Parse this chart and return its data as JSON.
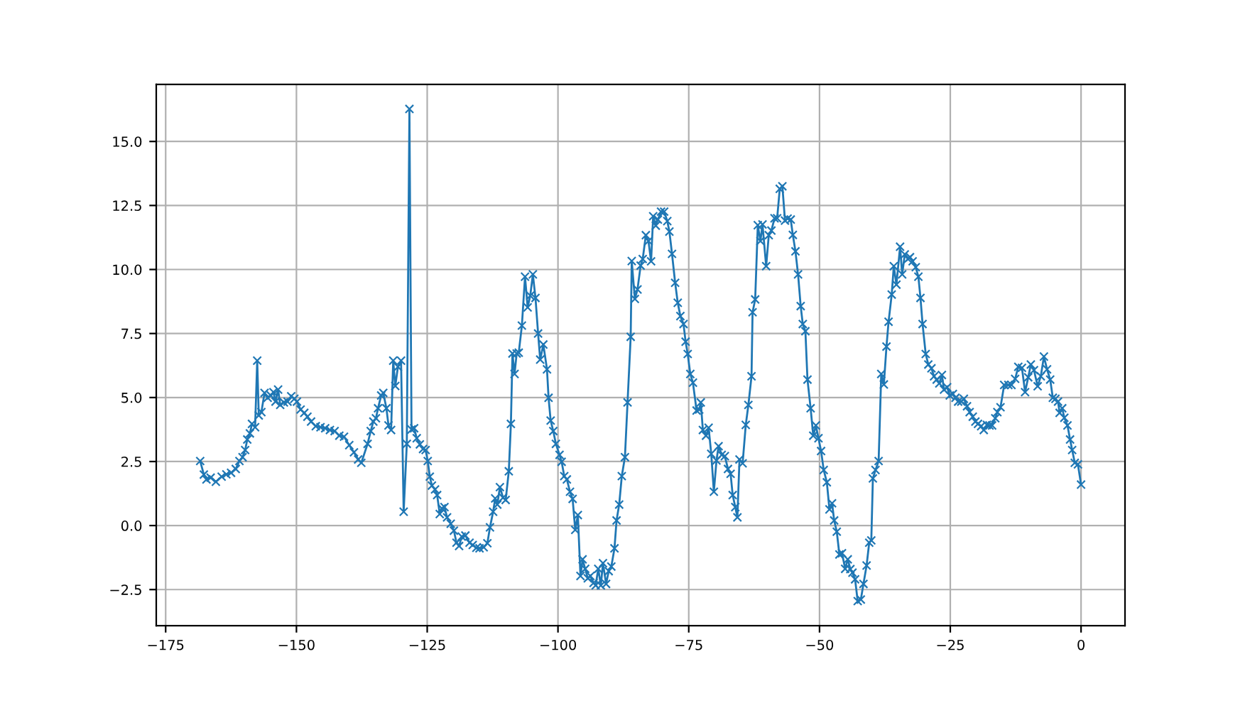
{
  "chart_data": {
    "type": "line",
    "x": [
      -168.4,
      -167.7,
      -167.2,
      -166.4,
      -165.4,
      -164.3,
      -163.4,
      -162.5,
      -161.6,
      -160.9,
      -160.3,
      -159.8,
      -159.4,
      -158.9,
      -158.5,
      -157.9,
      -157.5,
      -157.2,
      -156.7,
      -156.1,
      -155.5,
      -154.9,
      -154.4,
      -154.0,
      -153.5,
      -153.1,
      -152.4,
      -151.7,
      -151.0,
      -150.4,
      -149.9,
      -149.2,
      -148.5,
      -147.9,
      -147.2,
      -146.3,
      -145.4,
      -144.5,
      -143.6,
      -142.7,
      -141.8,
      -140.9,
      -139.9,
      -139.0,
      -138.2,
      -137.6,
      -136.4,
      -135.8,
      -135.3,
      -134.8,
      -134.4,
      -133.8,
      -133.4,
      -132.8,
      -132.4,
      -131.9,
      -131.5,
      -131.1,
      -130.6,
      -130.0,
      -129.5,
      -128.9,
      -128.4,
      -128.0,
      -127.5,
      -127.0,
      -126.4,
      -125.8,
      -125.3,
      -124.9,
      -124.5,
      -124.1,
      -123.5,
      -123.1,
      -122.6,
      -122.2,
      -121.7,
      -121.2,
      -120.5,
      -119.9,
      -119.4,
      -118.9,
      -118.4,
      -117.7,
      -116.9,
      -116.3,
      -115.6,
      -115.0,
      -114.2,
      -113.5,
      -113.0,
      -112.4,
      -112.0,
      -111.6,
      -111.1,
      -110.5,
      -110.0,
      -109.4,
      -109.0,
      -108.7,
      -108.3,
      -107.9,
      -107.5,
      -106.9,
      -106.3,
      -105.8,
      -105.3,
      -104.8,
      -104.3,
      -103.8,
      -103.4,
      -102.8,
      -102.1,
      -101.8,
      -101.4,
      -100.9,
      -100.4,
      -99.7,
      -99.3,
      -98.8,
      -98.3,
      -97.7,
      -97.2,
      -96.7,
      -96.2,
      -95.7,
      -95.3,
      -94.8,
      -94.3,
      -93.8,
      -93.2,
      -92.8,
      -92.3,
      -91.8,
      -91.4,
      -90.8,
      -90.3,
      -89.8,
      -89.2,
      -88.8,
      -88.3,
      -87.8,
      -87.2,
      -86.7,
      -86.1,
      -85.9,
      -85.3,
      -84.8,
      -84.2,
      -83.8,
      -83.2,
      -82.7,
      -82.2,
      -81.8,
      -81.3,
      -80.9,
      -80.3,
      -79.7,
      -79.1,
      -78.7,
      -78.2,
      -77.6,
      -77.1,
      -76.6,
      -76.0,
      -75.6,
      -75.2,
      -74.7,
      -74.2,
      -73.5,
      -73.0,
      -72.7,
      -72.3,
      -71.7,
      -71.2,
      -70.7,
      -70.2,
      -69.7,
      -69.3,
      -68.7,
      -68.1,
      -67.5,
      -67.0,
      -66.6,
      -66.1,
      -65.7,
      -65.3,
      -64.7,
      -64.1,
      -63.6,
      -63.0,
      -62.8,
      -62.3,
      -61.8,
      -61.3,
      -60.9,
      -60.2,
      -59.7,
      -59.2,
      -58.6,
      -58.1,
      -57.6,
      -57.1,
      -56.6,
      -56.1,
      -55.5,
      -55.1,
      -54.6,
      -54.1,
      -53.6,
      -53.2,
      -52.7,
      -52.3,
      -51.7,
      -51.2,
      -50.7,
      -50.2,
      -49.7,
      -49.2,
      -48.6,
      -48.1,
      -47.6,
      -47.2,
      -46.7,
      -46.2,
      -45.7,
      -45.1,
      -44.6,
      -44.1,
      -43.7,
      -43.2,
      -42.7,
      -42.1,
      -41.6,
      -41.0,
      -40.5,
      -40.1,
      -39.8,
      -39.3,
      -38.7,
      -38.2,
      -37.7,
      -37.2,
      -36.8,
      -36.2,
      -35.8,
      -35.3,
      -34.6,
      -34.2,
      -33.7,
      -33.1,
      -32.7,
      -32.2,
      -31.6,
      -31.1,
      -30.7,
      -30.3,
      -29.7,
      -29.2,
      -28.6,
      -28.1,
      -27.6,
      -27.1,
      -26.6,
      -26.2,
      -25.6,
      -25.1,
      -24.5,
      -24.0,
      -23.5,
      -22.9,
      -22.4,
      -21.8,
      -21.3,
      -20.7,
      -20.2,
      -19.7,
      -19.1,
      -18.6,
      -18.0,
      -17.5,
      -17.0,
      -16.4,
      -16.0,
      -15.4,
      -14.7,
      -13.9,
      -13.3,
      -12.6,
      -12.0,
      -11.3,
      -10.7,
      -10.1,
      -9.6,
      -9.0,
      -8.3,
      -7.7,
      -7.1,
      -6.5,
      -5.9,
      -5.4,
      -4.9,
      -4.4,
      -4.1,
      -3.6,
      -3.2,
      -2.6,
      -2.1,
      -1.7,
      -1.2,
      -0.6,
      0.0
    ],
    "series": [
      {
        "color": "#1f77b4",
        "values": [
          2.52,
          1.99,
          1.8,
          1.87,
          1.71,
          1.91,
          2.0,
          2.06,
          2.21,
          2.52,
          2.67,
          2.95,
          3.36,
          3.6,
          3.97,
          3.84,
          6.44,
          4.3,
          4.43,
          5.18,
          4.99,
          5.08,
          5.21,
          4.84,
          5.31,
          4.71,
          4.81,
          4.84,
          5.05,
          4.95,
          4.84,
          4.53,
          4.4,
          4.25,
          4.06,
          3.88,
          3.84,
          3.8,
          3.73,
          3.69,
          3.51,
          3.47,
          3.14,
          2.86,
          2.58,
          2.45,
          3.19,
          3.69,
          4.06,
          4.19,
          4.58,
          5.08,
          5.18,
          4.58,
          3.91,
          3.73,
          6.44,
          5.45,
          6.2,
          6.44,
          0.54,
          3.19,
          16.27,
          3.75,
          3.8,
          3.41,
          3.17,
          2.99,
          2.95,
          2.52,
          1.91,
          1.56,
          1.41,
          1.19,
          0.45,
          0.67,
          0.72,
          0.32,
          0.07,
          -0.2,
          -0.67,
          -0.8,
          -0.43,
          -0.39,
          -0.67,
          -0.76,
          -0.87,
          -0.89,
          -0.85,
          -0.69,
          -0.07,
          0.54,
          1.06,
          0.82,
          1.5,
          1.09,
          1.0,
          2.12,
          3.97,
          6.72,
          5.92,
          6.72,
          6.75,
          7.81,
          9.72,
          8.52,
          8.98,
          9.81,
          8.89,
          7.5,
          6.48,
          7.07,
          6.1,
          4.99,
          4.1,
          3.69,
          3.19,
          2.76,
          2.49,
          1.93,
          1.8,
          1.32,
          1.04,
          -0.17,
          0.41,
          -1.97,
          -1.32,
          -1.69,
          -2.06,
          -1.97,
          -2.24,
          -2.34,
          -1.69,
          -2.34,
          -1.47,
          -2.28,
          -1.78,
          -1.6,
          -0.89,
          0.2,
          0.82,
          1.93,
          2.67,
          4.81,
          7.37,
          10.33,
          8.85,
          9.22,
          10.15,
          10.41,
          11.34,
          11.11,
          10.32,
          12.08,
          11.71,
          11.95,
          12.26,
          12.26,
          11.89,
          11.48,
          10.61,
          9.48,
          8.7,
          8.18,
          7.87,
          7.18,
          6.7,
          5.92,
          5.58,
          4.49,
          4.53,
          4.81,
          3.73,
          3.51,
          3.82,
          2.8,
          1.32,
          2.54,
          3.1,
          2.76,
          2.71,
          2.21,
          2.02,
          1.19,
          0.72,
          0.32,
          2.58,
          2.43,
          3.93,
          4.71,
          5.83,
          8.33,
          8.83,
          11.73,
          11.11,
          11.76,
          10.13,
          11.34,
          11.52,
          12.0,
          12.0,
          13.15,
          13.25,
          11.91,
          11.99,
          11.95,
          11.35,
          10.71,
          9.81,
          8.57,
          7.87,
          7.59,
          5.7,
          4.58,
          3.51,
          3.91,
          3.41,
          2.91,
          2.17,
          1.69,
          0.63,
          0.87,
          0.2,
          -0.24,
          -1.13,
          -1.08,
          -1.69,
          -1.32,
          -1.7,
          -1.84,
          -2.1,
          -2.95,
          -2.89,
          -2.28,
          -1.56,
          -0.67,
          -0.58,
          1.84,
          2.17,
          2.52,
          5.92,
          5.51,
          6.99,
          7.96,
          9.02,
          10.13,
          9.41,
          10.89,
          9.81,
          10.59,
          10.41,
          10.48,
          10.32,
          10.09,
          9.72,
          8.89,
          7.87,
          6.7,
          6.29,
          6.14,
          5.83,
          5.7,
          5.55,
          5.88,
          5.31,
          5.4,
          5.08,
          5.14,
          4.99,
          4.84,
          4.84,
          4.95,
          4.66,
          4.43,
          4.25,
          4.06,
          3.97,
          3.88,
          3.73,
          3.93,
          3.91,
          3.91,
          4.19,
          4.43,
          4.62,
          5.49,
          5.49,
          5.49,
          5.73,
          6.2,
          6.16,
          5.21,
          5.79,
          6.29,
          6.07,
          5.44,
          5.83,
          6.6,
          6.1,
          5.7,
          4.99,
          4.95,
          4.84,
          4.4,
          4.58,
          4.21,
          3.91,
          3.36,
          2.95,
          2.45,
          2.39,
          1.6
        ]
      }
    ],
    "xlim": [
      -176.8,
      8.4
    ],
    "ylim": [
      -3.91,
      17.23
    ],
    "xticks": [
      {
        "value": -175,
        "label": "−175"
      },
      {
        "value": -150,
        "label": "−150"
      },
      {
        "value": -125,
        "label": "−125"
      },
      {
        "value": -100,
        "label": "−100"
      },
      {
        "value": -75,
        "label": "−75"
      },
      {
        "value": -50,
        "label": "−50"
      },
      {
        "value": -25,
        "label": "−25"
      },
      0
    ],
    "yticks": [
      {
        "value": -2.5,
        "label": "−2.5"
      },
      {
        "value": 0,
        "label": "0.0"
      },
      {
        "value": 2.5,
        "label": "2.5"
      },
      {
        "value": 5,
        "label": "5.0"
      },
      {
        "value": 7.5,
        "label": "7.5"
      },
      {
        "value": 10,
        "label": "10.0"
      },
      {
        "value": 12.5,
        "label": "12.5"
      },
      {
        "value": 15,
        "label": "15.0"
      }
    ],
    "grid": true,
    "marker": "cross",
    "line_style": "solid"
  }
}
